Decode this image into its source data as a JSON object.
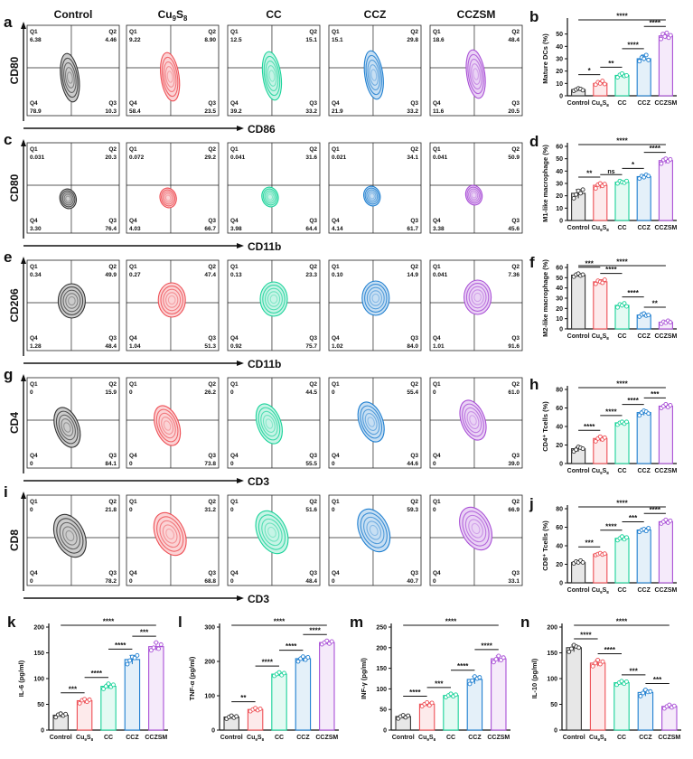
{
  "figure": {
    "panel_letters": [
      "a",
      "b",
      "c",
      "d",
      "e",
      "f",
      "g",
      "h",
      "i",
      "j",
      "k",
      "l",
      "m",
      "n"
    ],
    "column_titles": [
      "Control",
      "Cu9S8",
      "CC",
      "CCZ",
      "CCZSM"
    ],
    "group_colors": [
      "#333333",
      "#ee4f55",
      "#1bd39a",
      "#1f7fd0",
      "#a94fd6"
    ],
    "flow_rows": [
      {
        "letter": "a",
        "ylabel": "CD80",
        "xlabel": "CD86",
        "quadrant_labels": [
          "Q1",
          "Q2",
          "Q3",
          "Q4"
        ],
        "plots": [
          {
            "q1": "6.38",
            "q2": "4.46",
            "q3": "10.3",
            "q4": "78.9"
          },
          {
            "q1": "9.22",
            "q2": "8.90",
            "q3": "23.5",
            "q4": "58.4"
          },
          {
            "q1": "12.5",
            "q2": "15.1",
            "q3": "33.2",
            "q4": "39.2"
          },
          {
            "q1": "15.1",
            "q2": "29.8",
            "q3": "33.2",
            "q4": "21.9"
          },
          {
            "q1": "18.6",
            "q2": "48.4",
            "q3": "20.5",
            "q4": "11.6"
          }
        ]
      },
      {
        "letter": "c",
        "ylabel": "CD80",
        "xlabel": "CD11b",
        "quadrant_labels": [
          "Q1",
          "Q2",
          "Q3",
          "Q4"
        ],
        "plots": [
          {
            "q1": "0.031",
            "q2": "20.3",
            "q3": "76.4",
            "q4": "3.30"
          },
          {
            "q1": "0.072",
            "q2": "29.2",
            "q3": "66.7",
            "q4": "4.03"
          },
          {
            "q1": "0.041",
            "q2": "31.6",
            "q3": "64.4",
            "q4": "3.98"
          },
          {
            "q1": "0.021",
            "q2": "34.1",
            "q3": "61.7",
            "q4": "4.14"
          },
          {
            "q1": "0.041",
            "q2": "50.9",
            "q3": "45.6",
            "q4": "3.38"
          }
        ]
      },
      {
        "letter": "e",
        "ylabel": "CD206",
        "xlabel": "CD11b",
        "quadrant_labels": [
          "Q1",
          "Q2",
          "Q3",
          "Q4"
        ],
        "plots": [
          {
            "q1": "0.34",
            "q2": "49.9",
            "q3": "48.4",
            "q4": "1.28"
          },
          {
            "q1": "0.27",
            "q2": "47.4",
            "q3": "51.3",
            "q4": "1.04"
          },
          {
            "q1": "0.13",
            "q2": "23.3",
            "q3": "75.7",
            "q4": "0.92"
          },
          {
            "q1": "0.10",
            "q2": "14.9",
            "q3": "84.0",
            "q4": "1.02"
          },
          {
            "q1": "0.041",
            "q2": "7.36",
            "q3": "91.6",
            "q4": "1.01"
          }
        ]
      },
      {
        "letter": "g",
        "ylabel": "CD4",
        "xlabel": "CD3",
        "quadrant_labels": [
          "Q1",
          "Q2",
          "Q3",
          "Q4"
        ],
        "plots": [
          {
            "q1": "0",
            "q2": "15.9",
            "q3": "84.1",
            "q4": "0"
          },
          {
            "q1": "0",
            "q2": "26.2",
            "q3": "73.8",
            "q4": "0"
          },
          {
            "q1": "0",
            "q2": "44.5",
            "q3": "55.5",
            "q4": "0"
          },
          {
            "q1": "0",
            "q2": "55.4",
            "q3": "44.6",
            "q4": "0"
          },
          {
            "q1": "0",
            "q2": "61.0",
            "q3": "39.0",
            "q4": "0"
          }
        ]
      },
      {
        "letter": "i",
        "ylabel": "CD8",
        "xlabel": "CD3",
        "quadrant_labels": [
          "Q1",
          "Q2",
          "Q3",
          "Q4"
        ],
        "plots": [
          {
            "q1": "0",
            "q2": "21.8",
            "q3": "78.2",
            "q4": "0"
          },
          {
            "q1": "0",
            "q2": "31.2",
            "q3": "68.8",
            "q4": "0"
          },
          {
            "q1": "0",
            "q2": "51.6",
            "q3": "48.4",
            "q4": "0"
          },
          {
            "q1": "0",
            "q2": "59.3",
            "q3": "40.7",
            "q4": "0"
          },
          {
            "q1": "0",
            "q2": "66.9",
            "q3": "33.1",
            "q4": "0"
          }
        ]
      }
    ]
  },
  "chart_data": [
    {
      "panel": "b",
      "type": "bar",
      "categories": [
        "Control",
        "Cu9S8",
        "CC",
        "CCZ",
        "CCZSM"
      ],
      "ylabel": "Mature DCs (%)",
      "ylim": [
        0,
        60
      ],
      "yticks": [
        0,
        10,
        20,
        30,
        40,
        50
      ],
      "values": [
        5,
        10,
        16.5,
        30,
        48.5
      ],
      "points": [
        [
          4,
          5,
          6,
          5.5,
          4.5
        ],
        [
          9,
          11,
          10,
          12,
          9.5
        ],
        [
          15,
          17,
          18,
          16,
          16.5
        ],
        [
          28,
          31,
          30,
          33,
          29
        ],
        [
          46,
          50,
          48,
          51,
          47,
          49
        ]
      ],
      "significance": [
        {
          "from": 0,
          "to": 1,
          "label": "*"
        },
        {
          "from": 1,
          "to": 2,
          "label": "**"
        },
        {
          "from": 2,
          "to": 3,
          "label": "****"
        },
        {
          "from": 3,
          "to": 4,
          "label": "****"
        },
        {
          "from": 0,
          "to": 4,
          "label": "****"
        }
      ]
    },
    {
      "panel": "d",
      "type": "bar",
      "categories": [
        "Control",
        "Cu9S8",
        "CC",
        "CCZ",
        "CCZSM"
      ],
      "ylabel": "M1-like macrophage (%)",
      "ylim": [
        0,
        60
      ],
      "yticks": [
        0,
        10,
        20,
        30,
        40,
        50,
        60
      ],
      "values": [
        22,
        28.5,
        31,
        35.5,
        48.5
      ],
      "points": [
        [
          18,
          21,
          24,
          22,
          25
        ],
        [
          26,
          29,
          30,
          28,
          29.5
        ],
        [
          30,
          32,
          31,
          30.5,
          32
        ],
        [
          34,
          36,
          35,
          37,
          36
        ],
        [
          46,
          49,
          50,
          48,
          49.5
        ]
      ],
      "significance": [
        {
          "from": 0,
          "to": 1,
          "label": "**"
        },
        {
          "from": 1,
          "to": 2,
          "label": "ns"
        },
        {
          "from": 2,
          "to": 3,
          "label": "*"
        },
        {
          "from": 3,
          "to": 4,
          "label": "****"
        },
        {
          "from": 0,
          "to": 4,
          "label": "****"
        }
      ]
    },
    {
      "panel": "f",
      "type": "bar",
      "categories": [
        "Control",
        "Cu9S8",
        "CC",
        "CCZ",
        "CCZSM"
      ],
      "ylabel": "M2-like macrophage (%)",
      "ylim": [
        0,
        60
      ],
      "yticks": [
        0,
        10,
        20,
        30,
        40,
        50,
        60
      ],
      "values": [
        52.5,
        46,
        23,
        13.5,
        6.5
      ],
      "points": [
        [
          51,
          53,
          54,
          52,
          53
        ],
        [
          44,
          47,
          46,
          45,
          48
        ],
        [
          21,
          24,
          23,
          25,
          22
        ],
        [
          12,
          14,
          15,
          13,
          13.5
        ],
        [
          5,
          7,
          6,
          8,
          6.5
        ]
      ],
      "significance": [
        {
          "from": 0,
          "to": 1,
          "label": "***"
        },
        {
          "from": 1,
          "to": 2,
          "label": "****"
        },
        {
          "from": 2,
          "to": 3,
          "label": "****"
        },
        {
          "from": 3,
          "to": 4,
          "label": "**"
        },
        {
          "from": 0,
          "to": 4,
          "label": "****"
        }
      ]
    },
    {
      "panel": "h",
      "type": "bar",
      "categories": [
        "Control",
        "Cu9S8",
        "CC",
        "CCZ",
        "CCZSM"
      ],
      "ylabel": "CD4⁺ Tcells (%)",
      "ylim": [
        0,
        80
      ],
      "yticks": [
        0,
        20,
        40,
        60,
        80
      ],
      "values": [
        16,
        27,
        44,
        55,
        62
      ],
      "points": [
        [
          13,
          15,
          18,
          17,
          16
        ],
        [
          24,
          27,
          29,
          26,
          28
        ],
        [
          42,
          44,
          45,
          43,
          45
        ],
        [
          52,
          55,
          57,
          56,
          54
        ],
        [
          60,
          62,
          64,
          61,
          63
        ]
      ],
      "significance": [
        {
          "from": 0,
          "to": 1,
          "label": "****"
        },
        {
          "from": 1,
          "to": 2,
          "label": "****"
        },
        {
          "from": 2,
          "to": 3,
          "label": "****"
        },
        {
          "from": 3,
          "to": 4,
          "label": "***"
        },
        {
          "from": 0,
          "to": 4,
          "label": "****"
        }
      ]
    },
    {
      "panel": "j",
      "type": "bar",
      "categories": [
        "Control",
        "Cu9S8",
        "CC",
        "CCZ",
        "CCZSM"
      ],
      "ylabel": "CD8⁺ Tcells (%)",
      "ylim": [
        0,
        80
      ],
      "yticks": [
        0,
        20,
        40,
        60,
        80
      ],
      "values": [
        22,
        31,
        48,
        57,
        66
      ],
      "points": [
        [
          21,
          23,
          22,
          24,
          22
        ],
        [
          30,
          31,
          32,
          30.5,
          31.5
        ],
        [
          46,
          48,
          50,
          47,
          49
        ],
        [
          55,
          57,
          58,
          56,
          59
        ],
        [
          64,
          66,
          68,
          65,
          67
        ]
      ],
      "significance": [
        {
          "from": 0,
          "to": 1,
          "label": "***"
        },
        {
          "from": 1,
          "to": 2,
          "label": "****"
        },
        {
          "from": 2,
          "to": 3,
          "label": "***"
        },
        {
          "from": 3,
          "to": 4,
          "label": "****"
        },
        {
          "from": 0,
          "to": 4,
          "label": "****"
        }
      ]
    },
    {
      "panel": "k",
      "type": "bar",
      "categories": [
        "Control",
        "Cu9S8",
        "CC",
        "CCZ",
        "CCZSM"
      ],
      "ylabel": "IL-6 (pg/ml)",
      "ylim": [
        0,
        200
      ],
      "yticks": [
        0,
        50,
        100,
        150,
        200
      ],
      "values": [
        29,
        57,
        85,
        137,
        162
      ],
      "points": [
        [
          25,
          30,
          32,
          28,
          31
        ],
        [
          52,
          58,
          60,
          55,
          59
        ],
        [
          80,
          85,
          90,
          84,
          88
        ],
        [
          128,
          135,
          142,
          140,
          145
        ],
        [
          155,
          160,
          170,
          158,
          166
        ]
      ],
      "significance": [
        {
          "from": 0,
          "to": 1,
          "label": "***"
        },
        {
          "from": 1,
          "to": 2,
          "label": "****"
        },
        {
          "from": 2,
          "to": 3,
          "label": "****"
        },
        {
          "from": 3,
          "to": 4,
          "label": "***"
        },
        {
          "from": 0,
          "to": 4,
          "label": "****"
        }
      ]
    },
    {
      "panel": "l",
      "type": "bar",
      "categories": [
        "Control",
        "Cu9S8",
        "CC",
        "CCZ",
        "CCZSM"
      ],
      "ylabel": "TNF-α (pg/ml)",
      "ylim": [
        0,
        300
      ],
      "yticks": [
        0,
        100,
        200,
        300
      ],
      "values": [
        38,
        60,
        163,
        208,
        255
      ],
      "points": [
        [
          33,
          38,
          42,
          36,
          40
        ],
        [
          55,
          60,
          64,
          58,
          62
        ],
        [
          158,
          163,
          168,
          160,
          166
        ],
        [
          200,
          208,
          214,
          205,
          212
        ],
        [
          250,
          255,
          260,
          252,
          258
        ]
      ],
      "significance": [
        {
          "from": 0,
          "to": 1,
          "label": "**"
        },
        {
          "from": 1,
          "to": 2,
          "label": "****"
        },
        {
          "from": 2,
          "to": 3,
          "label": "****"
        },
        {
          "from": 3,
          "to": 4,
          "label": "****"
        },
        {
          "from": 0,
          "to": 4,
          "label": "****"
        }
      ]
    },
    {
      "panel": "m",
      "type": "bar",
      "categories": [
        "Control",
        "Cu9S8",
        "CC",
        "CCZ",
        "CCZSM"
      ],
      "ylabel": "INF-γ (pg/ml)",
      "ylim": [
        0,
        250
      ],
      "yticks": [
        0,
        50,
        100,
        150,
        200,
        250
      ],
      "values": [
        33,
        63,
        84,
        123,
        173
      ],
      "points": [
        [
          28,
          33,
          36,
          31,
          35
        ],
        [
          58,
          63,
          67,
          60,
          66
        ],
        [
          80,
          84,
          88,
          82,
          86
        ],
        [
          112,
          120,
          130,
          125,
          128
        ],
        [
          165,
          172,
          180,
          170,
          176
        ]
      ],
      "significance": [
        {
          "from": 0,
          "to": 1,
          "label": "****"
        },
        {
          "from": 1,
          "to": 2,
          "label": "***"
        },
        {
          "from": 2,
          "to": 3,
          "label": "****"
        },
        {
          "from": 3,
          "to": 4,
          "label": "****"
        },
        {
          "from": 0,
          "to": 4,
          "label": "****"
        }
      ]
    },
    {
      "panel": "n",
      "type": "bar",
      "categories": [
        "Control",
        "Cu9S8",
        "CC",
        "CCZ",
        "CCZSM"
      ],
      "ylabel": "IL-10 (pg/ml)",
      "ylim": [
        0,
        200
      ],
      "yticks": [
        0,
        50,
        100,
        150,
        200
      ],
      "values": [
        160,
        130,
        92,
        73,
        46
      ],
      "points": [
        [
          152,
          158,
          165,
          162,
          160
        ],
        [
          124,
          130,
          136,
          128,
          133
        ],
        [
          88,
          92,
          95,
          90,
          94
        ],
        [
          66,
          72,
          78,
          74,
          75
        ],
        [
          42,
          46,
          49,
          44,
          47
        ]
      ],
      "significance": [
        {
          "from": 0,
          "to": 1,
          "label": "****"
        },
        {
          "from": 1,
          "to": 2,
          "label": "****"
        },
        {
          "from": 2,
          "to": 3,
          "label": "***"
        },
        {
          "from": 3,
          "to": 4,
          "label": "***"
        },
        {
          "from": 0,
          "to": 4,
          "label": "****"
        }
      ]
    }
  ]
}
